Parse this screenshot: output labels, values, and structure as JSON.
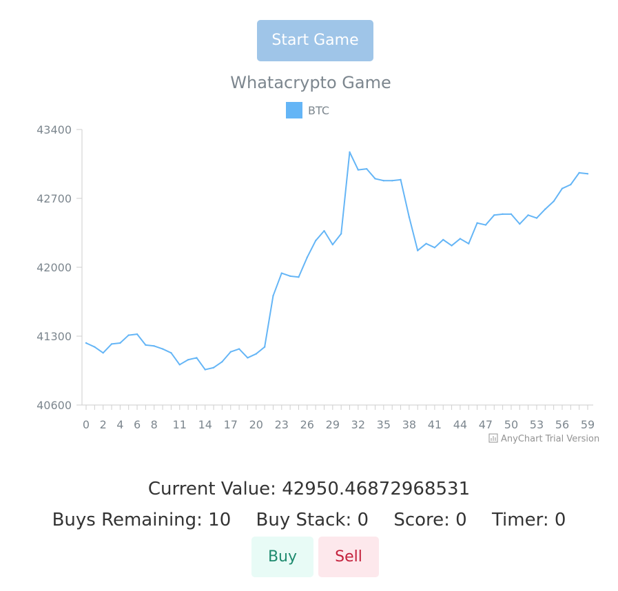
{
  "controls": {
    "start_label": "Start Game",
    "buy_label": "Buy",
    "sell_label": "Sell"
  },
  "chart_data": {
    "type": "line",
    "title": "Whatacrypto Game",
    "series": [
      {
        "name": "BTC",
        "color": "#64b5f6",
        "values": [
          41230,
          41190,
          41130,
          41220,
          41230,
          41310,
          41320,
          41210,
          41200,
          41170,
          41130,
          41010,
          41060,
          41080,
          40960,
          40980,
          41040,
          41140,
          41170,
          41080,
          41120,
          41190,
          41710,
          41940,
          41910,
          41900,
          42100,
          42270,
          42370,
          42230,
          42340,
          43170,
          42990,
          43000,
          42900,
          42880,
          42880,
          42890,
          42510,
          42170,
          42240,
          42200,
          42280,
          42220,
          42290,
          42240,
          42450,
          42430,
          42530,
          42540,
          42540,
          42440,
          42530,
          42500,
          42590,
          42670,
          42800,
          42840,
          42960,
          42950
        ]
      }
    ],
    "x": [
      0,
      1,
      2,
      3,
      4,
      5,
      6,
      7,
      8,
      9,
      10,
      11,
      12,
      13,
      14,
      15,
      16,
      17,
      18,
      19,
      20,
      21,
      22,
      23,
      24,
      25,
      26,
      27,
      28,
      29,
      30,
      31,
      32,
      33,
      34,
      35,
      36,
      37,
      38,
      39,
      40,
      41,
      42,
      43,
      44,
      45,
      46,
      47,
      48,
      49,
      50,
      51,
      52,
      53,
      54,
      55,
      56,
      57,
      58,
      59
    ],
    "x_tick_labels": [
      "0",
      "2",
      "4",
      "6",
      "8",
      "11",
      "14",
      "17",
      "20",
      "23",
      "26",
      "29",
      "32",
      "35",
      "38",
      "41",
      "44",
      "47",
      "50",
      "53",
      "56",
      "59"
    ],
    "x_tick_values": [
      0,
      2,
      4,
      6,
      8,
      11,
      14,
      17,
      20,
      23,
      26,
      29,
      32,
      35,
      38,
      41,
      44,
      47,
      50,
      53,
      56,
      59
    ],
    "y_tick_labels": [
      "43400",
      "42700",
      "42000",
      "41300",
      "40600"
    ],
    "y_tick_values": [
      43400,
      42700,
      42000,
      41300,
      40600
    ],
    "ylim": [
      40600,
      43400
    ],
    "xlim": [
      0,
      59
    ],
    "grid": false,
    "legend_position": "top-center",
    "credit": "AnyChart Trial Version"
  },
  "status": {
    "current_value": "Current Value: 42950.46872968531",
    "buys_remaining": "Buys Remaining: 10",
    "buy_stack": "Buy Stack: 0",
    "score": "Score: 0",
    "timer": "Timer: 0"
  }
}
